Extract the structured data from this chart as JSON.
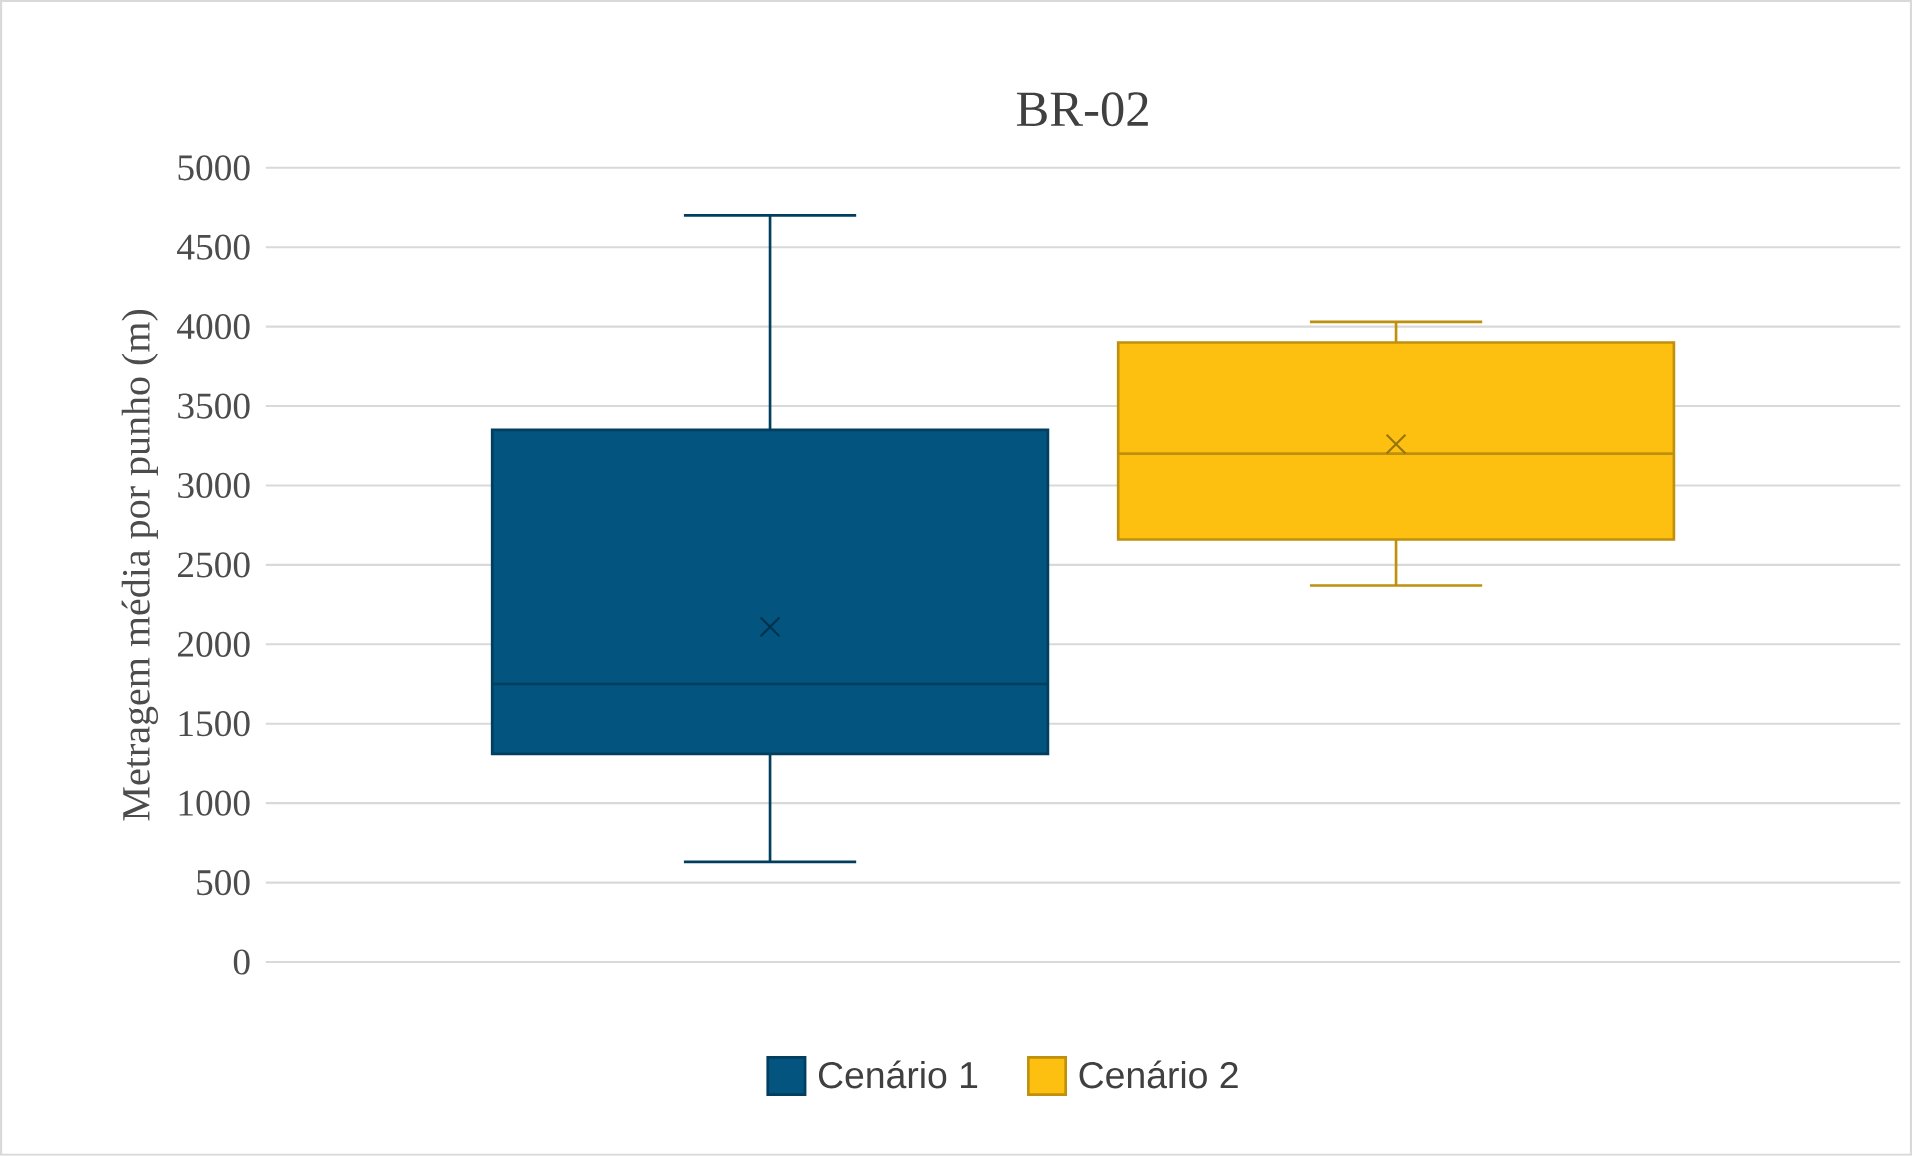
{
  "chart_data": {
    "type": "box",
    "title": "BR-02",
    "ylabel": "Metragem média por punho (m)",
    "categories": [
      null
    ],
    "series": [
      {
        "name": "Cenário 1",
        "color": "#03547f",
        "boxes": [
          {
            "low": 630,
            "q1": 1310,
            "median": 1750,
            "q3": 3350,
            "high": 4700,
            "mean": 2110
          }
        ]
      },
      {
        "name": "Cenário 2",
        "color": "#fdc010",
        "boxes": [
          {
            "low": 2370,
            "q1": 2660,
            "median": 3200,
            "q3": 3900,
            "high": 4030,
            "mean": 3260
          }
        ]
      }
    ],
    "ylim": [
      0,
      5000
    ],
    "yticks": [
      0,
      500,
      1000,
      1500,
      2000,
      2500,
      3000,
      3500,
      4000,
      4500,
      5000
    ],
    "grid": "y",
    "legend": "bottom"
  }
}
